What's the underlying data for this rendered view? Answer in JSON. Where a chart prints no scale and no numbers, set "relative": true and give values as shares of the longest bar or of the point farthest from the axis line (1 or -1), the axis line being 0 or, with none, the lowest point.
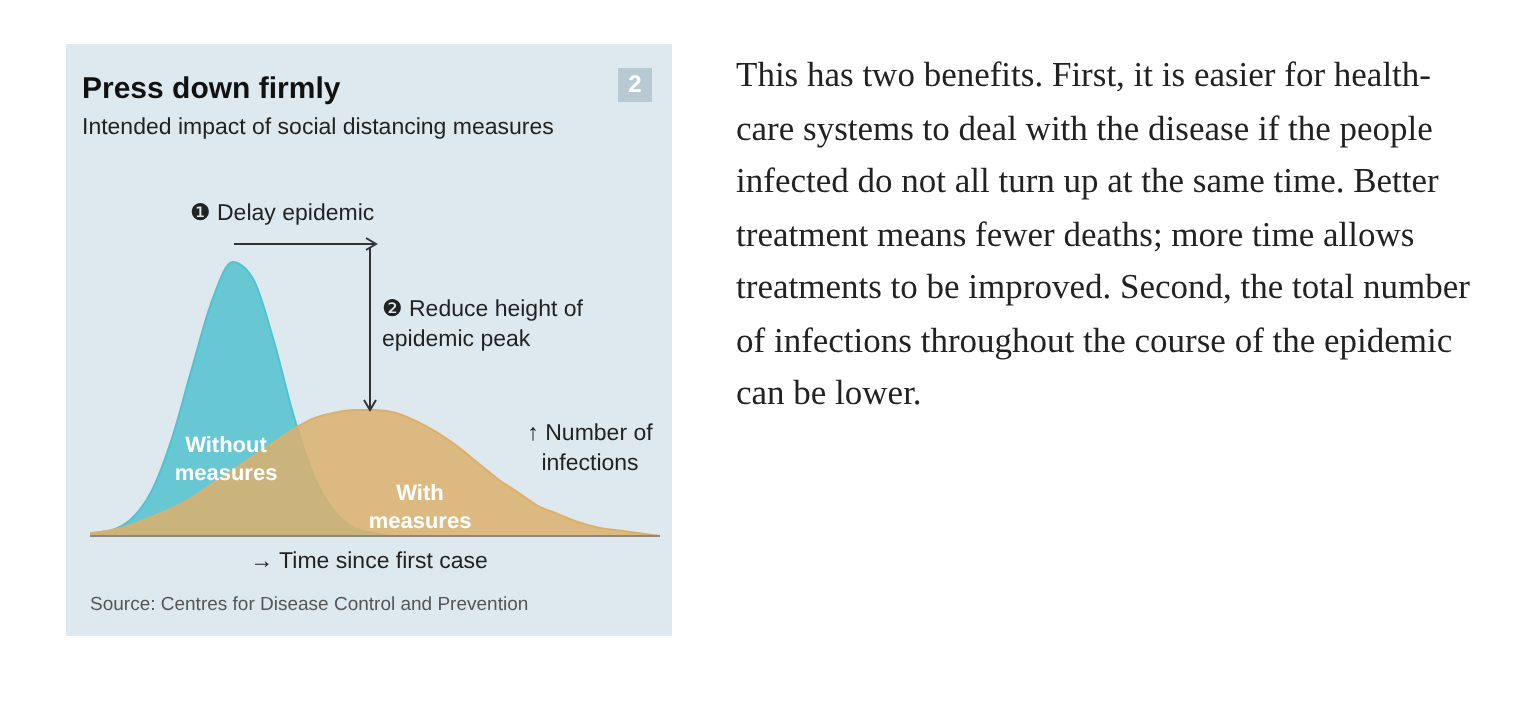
{
  "chart_data": {
    "type": "area",
    "title": "Press down firmly",
    "subtitle": "Intended impact of social distancing measures",
    "xlabel": "→ Time since first case",
    "ylabel": "↑ Number of infections",
    "relative": true,
    "categories": [
      null,
      null,
      null,
      null,
      null,
      null,
      null,
      null,
      null,
      null,
      null,
      null,
      null,
      null,
      null,
      null,
      null,
      null,
      null,
      null,
      null,
      null,
      null,
      null,
      null,
      null,
      null,
      null,
      null
    ],
    "series": [
      {
        "name": "Without measures",
        "color": "#52c2cf",
        "values": [
          0.01,
          0.02,
          0.06,
          0.16,
          0.35,
          0.61,
          0.86,
          1,
          0.94,
          0.72,
          0.44,
          0.22,
          0.09,
          0.03,
          0.01,
          0,
          0,
          0,
          0,
          0,
          0,
          0,
          0,
          0,
          0,
          0,
          0,
          0,
          0
        ]
      },
      {
        "name": "With measures",
        "color": "#dcb06c",
        "values": [
          0.01,
          0.02,
          0.04,
          0.07,
          0.1,
          0.14,
          0.19,
          0.24,
          0.29,
          0.34,
          0.39,
          0.43,
          0.45,
          0.46,
          0.46,
          0.45,
          0.42,
          0.38,
          0.33,
          0.27,
          0.21,
          0.16,
          0.11,
          0.08,
          0.05,
          0.03,
          0.02,
          0.01,
          0
        ]
      }
    ],
    "annotations": [
      "❶ Delay epidemic",
      "❷ Reduce height of epidemic peak",
      "Source: Centres for Disease Control and Prevention",
      "2",
      "This has two benefits. First, it is easier for health-care systems to deal with the disease if the people infected do not all turn up at the same time. Better treatment means fewer deaths; more time allows treatments to be improved. Second, the total number of infections throughout the course of the epidemic can be lower."
    ]
  }
}
